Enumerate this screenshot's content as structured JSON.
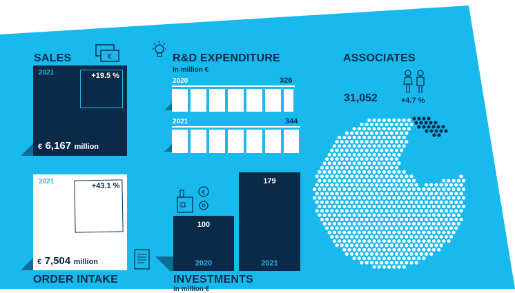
{
  "colors": {
    "panel": "#18b9ec",
    "navy": "#0a2a47",
    "white": "#ffffff",
    "accent": "#29b6e8"
  },
  "sales": {
    "heading": "SALES",
    "year": "2021",
    "change": "+19.5 %",
    "currency": "€",
    "value": "6,167",
    "unit": "million",
    "icon": "banknotes-icon"
  },
  "order_intake": {
    "heading": "ORDER INTAKE",
    "year": "2021",
    "change": "+43.1 %",
    "currency": "€",
    "value": "7,504",
    "unit": "million",
    "icon": "document-icon"
  },
  "rd": {
    "heading": "R&D EXPENDITURE",
    "subheading": "in million €",
    "icon": "lightbulb-icon",
    "rows": [
      {
        "year": "2020",
        "value": "326"
      },
      {
        "year": "2021",
        "value": "344"
      }
    ]
  },
  "investments": {
    "heading": "INVESTMENTS",
    "subheading": "in million €",
    "icon": "factory-icon",
    "bars": [
      {
        "year": "2020",
        "value": "100"
      },
      {
        "year": "2021",
        "value": "179"
      }
    ]
  },
  "associates": {
    "heading": "ASSOCIATES",
    "value": "31,052",
    "change": "+4.7 %",
    "icon": "people-icon"
  }
}
